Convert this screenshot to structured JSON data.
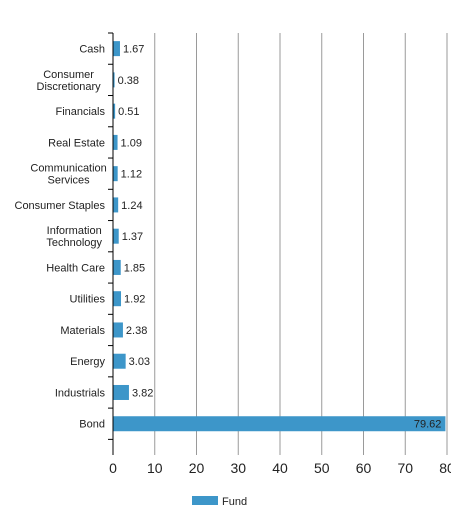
{
  "chart_data": {
    "type": "bar",
    "orientation": "horizontal",
    "categories": [
      "Cash",
      "Consumer Discretionary",
      "Financials",
      "Real Estate",
      "Communication Services",
      "Consumer Staples",
      "Information Technology",
      "Health Care",
      "Utilities",
      "Materials",
      "Energy",
      "Industrials",
      "Bond"
    ],
    "category_lines": [
      [
        "Cash"
      ],
      [
        "Consumer",
        "Discretionary"
      ],
      [
        "Financials"
      ],
      [
        "Real Estate"
      ],
      [
        "Communication",
        "Services"
      ],
      [
        "Consumer Staples"
      ],
      [
        "Information",
        "Technology"
      ],
      [
        "Health Care"
      ],
      [
        "Utilities"
      ],
      [
        "Materials"
      ],
      [
        "Energy"
      ],
      [
        "Industrials"
      ],
      [
        "Bond"
      ]
    ],
    "series": [
      {
        "name": "Fund",
        "values": [
          1.67,
          0.38,
          0.51,
          1.09,
          1.12,
          1.24,
          1.37,
          1.85,
          1.92,
          2.38,
          3.03,
          3.82,
          79.62
        ]
      }
    ],
    "data_labels": [
      "1.67",
      "0.38",
      "0.51",
      "1.09",
      "1.12",
      "1.24",
      "1.37",
      "1.85",
      "1.92",
      "2.38",
      "3.03",
      "3.82",
      "79.62"
    ],
    "xlim": [
      0,
      80
    ],
    "xticks": [
      0,
      10,
      20,
      30,
      40,
      50,
      60,
      70,
      80
    ],
    "xtick_labels": [
      "0",
      "10",
      "20",
      "30",
      "40",
      "50",
      "60",
      "70",
      "80"
    ],
    "title": "",
    "xlabel": "",
    "ylabel": "",
    "grid": "vertical",
    "legend_position": "bottom",
    "bar_color": "#3d96c9"
  }
}
